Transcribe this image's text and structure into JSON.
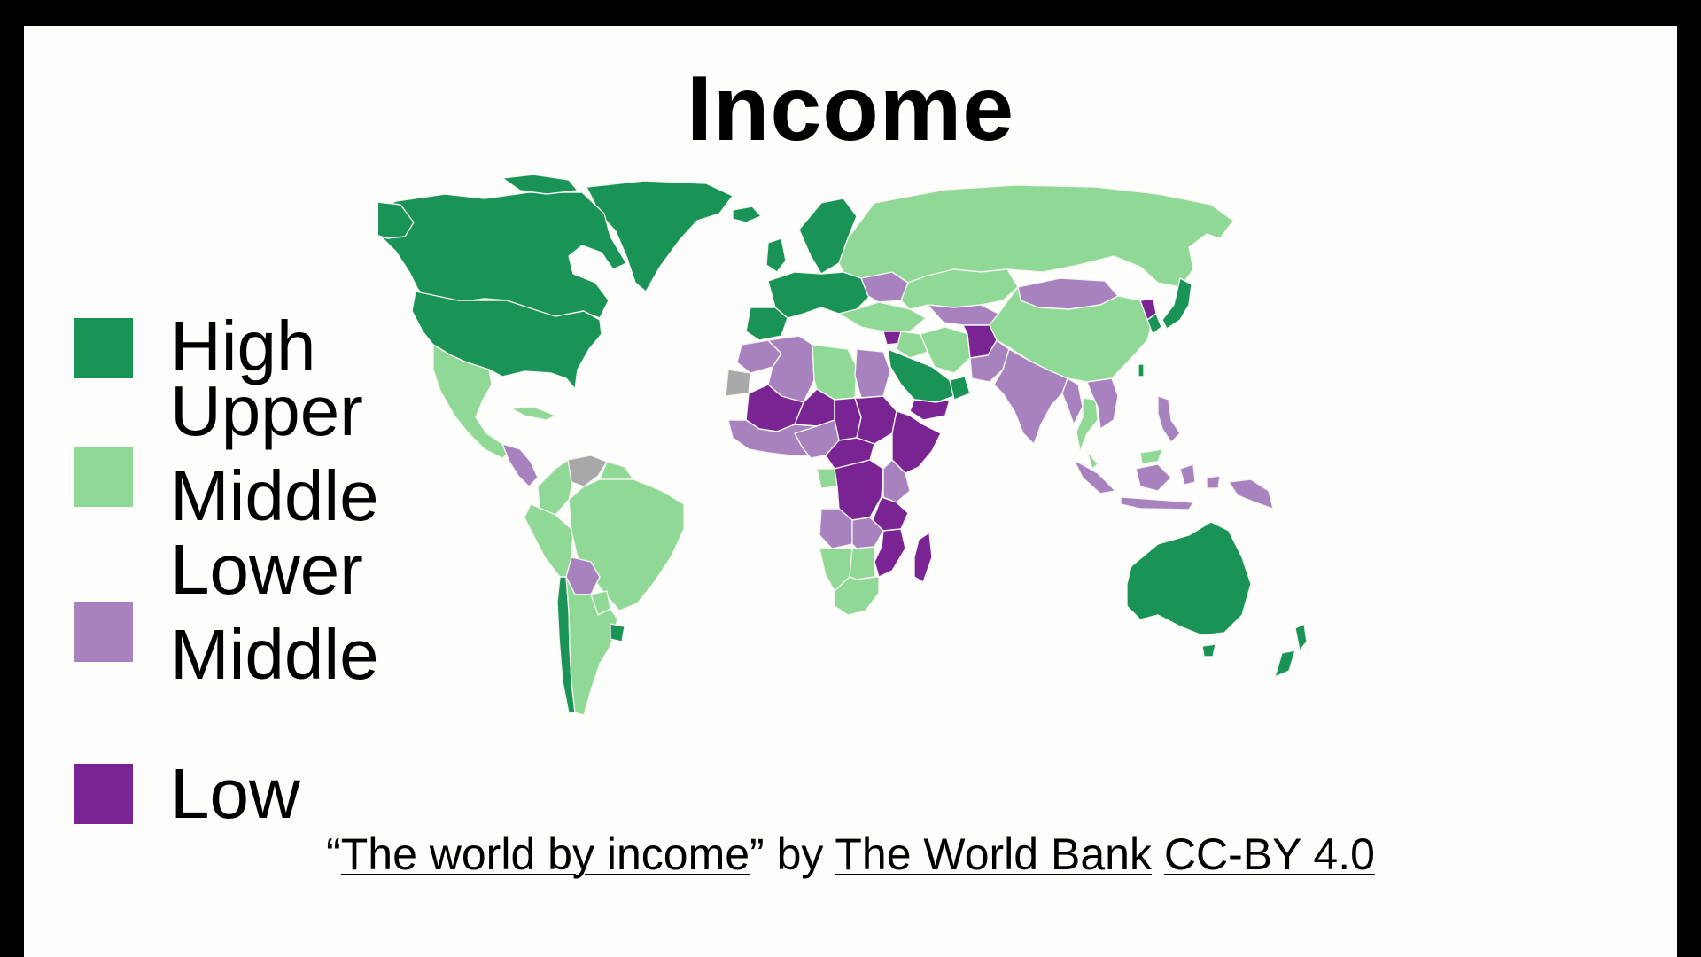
{
  "title": "Income",
  "colors": {
    "high": "#1a9357",
    "upper_middle": "#8fd895",
    "lower_middle": "#a882bf",
    "low": "#7a2493",
    "no_data": "#a8a8a8",
    "background": "#fdfdfb",
    "frame": "#000000"
  },
  "legend": {
    "items": [
      {
        "key": "high",
        "label_lines": [
          "High"
        ],
        "color": "#1a9357"
      },
      {
        "key": "upper_middle",
        "label_lines": [
          "Upper",
          "Middle"
        ],
        "color": "#8fd895"
      },
      {
        "key": "lower_middle",
        "label_lines": [
          "Lower",
          "Middle"
        ],
        "color": "#a882bf"
      },
      {
        "key": "low",
        "label_lines": [
          "Low"
        ],
        "color": "#7a2493"
      }
    ]
  },
  "map": {
    "projection": "world-robinson",
    "regions": [
      {
        "name": "Canada",
        "group": "high"
      },
      {
        "name": "United States",
        "group": "high"
      },
      {
        "name": "Greenland",
        "group": "high"
      },
      {
        "name": "Western Europe",
        "group": "high"
      },
      {
        "name": "Scandinavia",
        "group": "high"
      },
      {
        "name": "Saudi Arabia",
        "group": "high"
      },
      {
        "name": "Japan",
        "group": "high"
      },
      {
        "name": "South Korea",
        "group": "high"
      },
      {
        "name": "Australia",
        "group": "high"
      },
      {
        "name": "New Zealand",
        "group": "high"
      },
      {
        "name": "Chile",
        "group": "high"
      },
      {
        "name": "Uruguay",
        "group": "high"
      },
      {
        "name": "Russia",
        "group": "upper_middle"
      },
      {
        "name": "China",
        "group": "upper_middle"
      },
      {
        "name": "Mexico",
        "group": "upper_middle"
      },
      {
        "name": "Brazil",
        "group": "upper_middle"
      },
      {
        "name": "Argentina",
        "group": "upper_middle"
      },
      {
        "name": "Peru",
        "group": "upper_middle"
      },
      {
        "name": "Colombia",
        "group": "upper_middle"
      },
      {
        "name": "Turkey",
        "group": "upper_middle"
      },
      {
        "name": "Iran",
        "group": "upper_middle"
      },
      {
        "name": "Kazakhstan",
        "group": "upper_middle"
      },
      {
        "name": "Libya",
        "group": "upper_middle"
      },
      {
        "name": "South Africa",
        "group": "upper_middle"
      },
      {
        "name": "Namibia",
        "group": "upper_middle"
      },
      {
        "name": "Botswana",
        "group": "upper_middle"
      },
      {
        "name": "Thailand",
        "group": "upper_middle"
      },
      {
        "name": "Malaysia",
        "group": "upper_middle"
      },
      {
        "name": "Gabon",
        "group": "upper_middle"
      },
      {
        "name": "India",
        "group": "lower_middle"
      },
      {
        "name": "Pakistan",
        "group": "lower_middle"
      },
      {
        "name": "Mongolia",
        "group": "lower_middle"
      },
      {
        "name": "Ukraine",
        "group": "lower_middle"
      },
      {
        "name": "Algeria",
        "group": "lower_middle"
      },
      {
        "name": "Egypt",
        "group": "lower_middle"
      },
      {
        "name": "Morocco",
        "group": "lower_middle"
      },
      {
        "name": "Nigeria",
        "group": "lower_middle"
      },
      {
        "name": "Kenya",
        "group": "lower_middle"
      },
      {
        "name": "Angola",
        "group": "lower_middle"
      },
      {
        "name": "Zambia",
        "group": "lower_middle"
      },
      {
        "name": "Bolivia",
        "group": "lower_middle"
      },
      {
        "name": "Central America",
        "group": "lower_middle"
      },
      {
        "name": "Indonesia",
        "group": "lower_middle"
      },
      {
        "name": "Philippines",
        "group": "lower_middle"
      },
      {
        "name": "Papua New Guinea",
        "group": "lower_middle"
      },
      {
        "name": "Vietnam",
        "group": "lower_middle"
      },
      {
        "name": "Myanmar",
        "group": "lower_middle"
      },
      {
        "name": "Mali",
        "group": "low"
      },
      {
        "name": "Niger",
        "group": "low"
      },
      {
        "name": "Chad",
        "group": "low"
      },
      {
        "name": "Sudan",
        "group": "low"
      },
      {
        "name": "Ethiopia",
        "group": "low"
      },
      {
        "name": "Somalia",
        "group": "low"
      },
      {
        "name": "DR Congo",
        "group": "low"
      },
      {
        "name": "Madagascar",
        "group": "low"
      },
      {
        "name": "Mozambique",
        "group": "low"
      },
      {
        "name": "Afghanistan",
        "group": "low"
      },
      {
        "name": "Yemen",
        "group": "low"
      },
      {
        "name": "Syria",
        "group": "low"
      },
      {
        "name": "North Korea",
        "group": "low"
      },
      {
        "name": "Western Sahara",
        "group": "no_data"
      },
      {
        "name": "Venezuela",
        "group": "no_data"
      }
    ]
  },
  "credit": {
    "open_quote": "“",
    "work_title": "The world by income",
    "close_quote_by": "” by ",
    "author": "The World Bank",
    "sep": " ",
    "license": "CC-BY 4.0"
  }
}
